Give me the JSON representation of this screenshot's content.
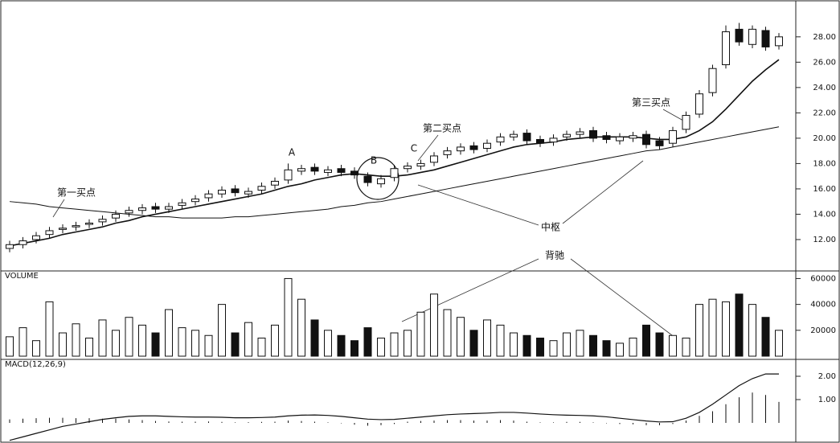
{
  "chart_data": {
    "type": "candlestick",
    "open": [
      11.3,
      11.6,
      12.0,
      12.4,
      12.8,
      13.0,
      13.2,
      13.4,
      13.7,
      14.1,
      14.3,
      14.6,
      14.4,
      14.7,
      15.0,
      15.3,
      15.6,
      16.0,
      15.6,
      15.9,
      16.3,
      16.7,
      17.4,
      17.7,
      17.3,
      17.6,
      17.4,
      17.0,
      16.4,
      16.9,
      17.6,
      17.8,
      18.1,
      18.7,
      19.0,
      19.4,
      19.2,
      19.7,
      20.1,
      20.4,
      19.9,
      19.7,
      20.1,
      20.3,
      20.6,
      20.2,
      19.8,
      20.0,
      20.3,
      19.8,
      19.6,
      20.7,
      21.9,
      23.6,
      25.8,
      28.6,
      27.4,
      28.5,
      27.3
    ],
    "high": [
      11.9,
      12.2,
      12.6,
      13.0,
      13.2,
      13.4,
      13.6,
      13.9,
      14.3,
      14.6,
      14.8,
      14.9,
      14.9,
      15.2,
      15.5,
      15.9,
      16.2,
      16.3,
      16.1,
      16.5,
      16.9,
      18.0,
      17.9,
      18.0,
      17.8,
      17.9,
      17.7,
      17.3,
      17.1,
      17.9,
      18.1,
      18.3,
      18.9,
      19.3,
      19.6,
      19.7,
      19.9,
      20.4,
      20.6,
      20.7,
      20.2,
      20.3,
      20.6,
      20.8,
      20.9,
      20.5,
      20.4,
      20.5,
      20.6,
      20.1,
      20.9,
      22.1,
      23.8,
      25.8,
      28.9,
      29.1,
      28.9,
      28.8,
      28.3
    ],
    "low": [
      11.0,
      11.3,
      11.7,
      12.1,
      12.5,
      12.7,
      12.9,
      13.1,
      13.4,
      13.8,
      14.0,
      14.1,
      14.1,
      14.4,
      14.7,
      15.0,
      15.3,
      15.4,
      15.3,
      15.6,
      16.0,
      16.4,
      17.1,
      17.1,
      17.0,
      17.0,
      16.8,
      16.2,
      16.1,
      16.6,
      17.3,
      17.5,
      17.8,
      18.4,
      18.7,
      18.8,
      18.9,
      19.4,
      19.8,
      19.5,
      19.3,
      19.4,
      19.8,
      20.0,
      19.7,
      19.6,
      19.5,
      19.7,
      19.2,
      19.1,
      19.3,
      20.4,
      21.6,
      23.3,
      25.5,
      27.3,
      27.1,
      26.9,
      27.0
    ],
    "close": [
      11.6,
      11.9,
      12.3,
      12.7,
      12.9,
      13.1,
      13.3,
      13.6,
      14.0,
      14.3,
      14.5,
      14.4,
      14.6,
      14.9,
      15.2,
      15.6,
      15.9,
      15.7,
      15.8,
      16.2,
      16.6,
      17.5,
      17.6,
      17.4,
      17.5,
      17.3,
      17.1,
      16.5,
      16.8,
      17.6,
      17.8,
      18.0,
      18.6,
      19.0,
      19.3,
      19.1,
      19.6,
      20.1,
      20.3,
      19.8,
      19.6,
      20.0,
      20.3,
      20.5,
      20.0,
      19.9,
      20.1,
      20.2,
      19.5,
      19.4,
      20.6,
      21.8,
      23.5,
      25.5,
      28.4,
      27.6,
      28.6,
      27.2,
      28.0
    ],
    "ma_short": [
      11.5,
      11.7,
      11.9,
      12.1,
      12.4,
      12.6,
      12.8,
      13.0,
      13.3,
      13.5,
      13.8,
      14.0,
      14.2,
      14.4,
      14.6,
      14.8,
      15.0,
      15.2,
      15.4,
      15.6,
      15.9,
      16.2,
      16.4,
      16.7,
      16.9,
      17.1,
      17.2,
      17.1,
      17.0,
      17.0,
      17.1,
      17.3,
      17.5,
      17.8,
      18.1,
      18.4,
      18.7,
      19.0,
      19.3,
      19.5,
      19.6,
      19.7,
      19.9,
      20.0,
      20.1,
      20.1,
      20.1,
      20.1,
      20.0,
      19.9,
      19.9,
      20.1,
      20.6,
      21.3,
      22.3,
      23.4,
      24.5,
      25.4,
      26.2
    ],
    "ma_long": [
      15.0,
      14.9,
      14.8,
      14.6,
      14.5,
      14.4,
      14.3,
      14.2,
      14.1,
      14.0,
      13.9,
      13.8,
      13.8,
      13.7,
      13.7,
      13.7,
      13.7,
      13.8,
      13.8,
      13.9,
      14.0,
      14.1,
      14.2,
      14.3,
      14.4,
      14.6,
      14.7,
      14.9,
      15.0,
      15.2,
      15.4,
      15.6,
      15.8,
      16.0,
      16.2,
      16.4,
      16.6,
      16.8,
      17.0,
      17.2,
      17.4,
      17.6,
      17.8,
      18.0,
      18.2,
      18.4,
      18.6,
      18.8,
      19.0,
      19.1,
      19.3,
      19.5,
      19.7,
      19.9,
      20.1,
      20.3,
      20.5,
      20.7,
      20.9
    ],
    "ylim": [
      9.65,
      30.4
    ],
    "yticks": [
      {
        "value": 12,
        "label": "12.00"
      },
      {
        "value": 14,
        "label": "14.00"
      },
      {
        "value": 16,
        "label": "16.00"
      },
      {
        "value": 18,
        "label": "18.00"
      },
      {
        "value": 20,
        "label": "20.00"
      },
      {
        "value": 22,
        "label": "22.00"
      },
      {
        "value": 24,
        "label": "24.00"
      },
      {
        "value": 26,
        "label": "26.00"
      },
      {
        "value": 28,
        "label": "28.00"
      }
    ],
    "annotations": [
      "A",
      "B",
      "C",
      "第一买点",
      "第二买点",
      "第三买点",
      "中枢",
      "背驰"
    ],
    "volume": {
      "title": "VOLUME",
      "values": [
        15000,
        22000,
        12000,
        42000,
        18000,
        25000,
        14000,
        28000,
        20000,
        30000,
        24000,
        18000,
        36000,
        22000,
        20000,
        16000,
        40000,
        18000,
        26000,
        14000,
        24000,
        60000,
        44000,
        28000,
        20000,
        16000,
        12000,
        22000,
        14000,
        18000,
        20000,
        34000,
        48000,
        36000,
        30000,
        20000,
        28000,
        24000,
        18000,
        16000,
        14000,
        12000,
        18000,
        20000,
        16000,
        12000,
        10000,
        14000,
        24000,
        18000,
        16000,
        14000,
        40000,
        44000,
        42000,
        48000,
        40000,
        30000,
        20000
      ],
      "ylim": [
        0,
        64000
      ],
      "yticks": [
        20000,
        40000,
        60000
      ]
    },
    "macd": {
      "title": "MACD(12,26,9)",
      "hist": [
        0.15,
        0.18,
        0.2,
        0.22,
        0.22,
        0.2,
        0.2,
        0.18,
        0.18,
        0.15,
        0.12,
        0.08,
        0.06,
        0.05,
        0.05,
        0.06,
        0.04,
        0.02,
        0.03,
        0.04,
        0.05,
        0.1,
        0.08,
        0.05,
        0.02,
        -0.02,
        -0.08,
        -0.12,
        -0.1,
        -0.05,
        0.05,
        0.08,
        0.1,
        0.12,
        0.12,
        0.1,
        0.1,
        0.12,
        0.1,
        0.05,
        0.02,
        0.02,
        0.04,
        0.04,
        0.02,
        -0.02,
        -0.05,
        -0.06,
        -0.1,
        -0.1,
        -0.05,
        0.1,
        0.3,
        0.5,
        0.8,
        1.1,
        1.3,
        1.2,
        0.9
      ],
      "dif": [
        -0.75,
        -0.6,
        -0.45,
        -0.3,
        -0.15,
        -0.05,
        0.05,
        0.15,
        0.22,
        0.28,
        0.3,
        0.3,
        0.28,
        0.26,
        0.25,
        0.25,
        0.24,
        0.22,
        0.22,
        0.23,
        0.25,
        0.3,
        0.33,
        0.34,
        0.32,
        0.28,
        0.22,
        0.16,
        0.14,
        0.15,
        0.2,
        0.25,
        0.3,
        0.35,
        0.38,
        0.4,
        0.42,
        0.45,
        0.45,
        0.42,
        0.38,
        0.35,
        0.33,
        0.32,
        0.3,
        0.26,
        0.2,
        0.14,
        0.08,
        0.04,
        0.05,
        0.2,
        0.45,
        0.8,
        1.2,
        1.6,
        1.9,
        2.1,
        2.1
      ],
      "ylim": [
        -0.76,
        2.69
      ],
      "yticks": [
        {
          "value": 1,
          "label": "1.00"
        },
        {
          "value": 2,
          "label": "2.00"
        }
      ]
    }
  }
}
